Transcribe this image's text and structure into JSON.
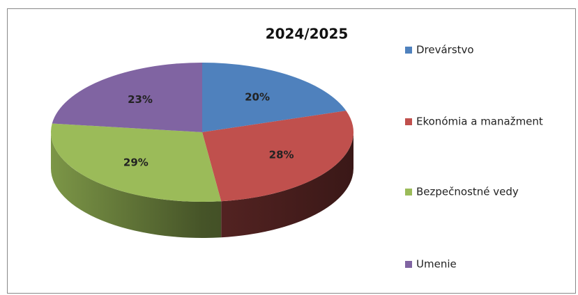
{
  "chart_data": {
    "type": "pie",
    "title": "2024/2025",
    "categories": [
      "Drevárstvo",
      "Ekonómia a manažment",
      "Bezpečnostné vedy",
      "Umenie"
    ],
    "values": [
      20,
      28,
      29,
      23
    ],
    "value_labels": [
      "20%",
      "28%",
      "29%",
      "23%"
    ],
    "colors": [
      "#4f81bd",
      "#c0504d",
      "#9bbb59",
      "#8064a2"
    ],
    "legend": "right"
  }
}
